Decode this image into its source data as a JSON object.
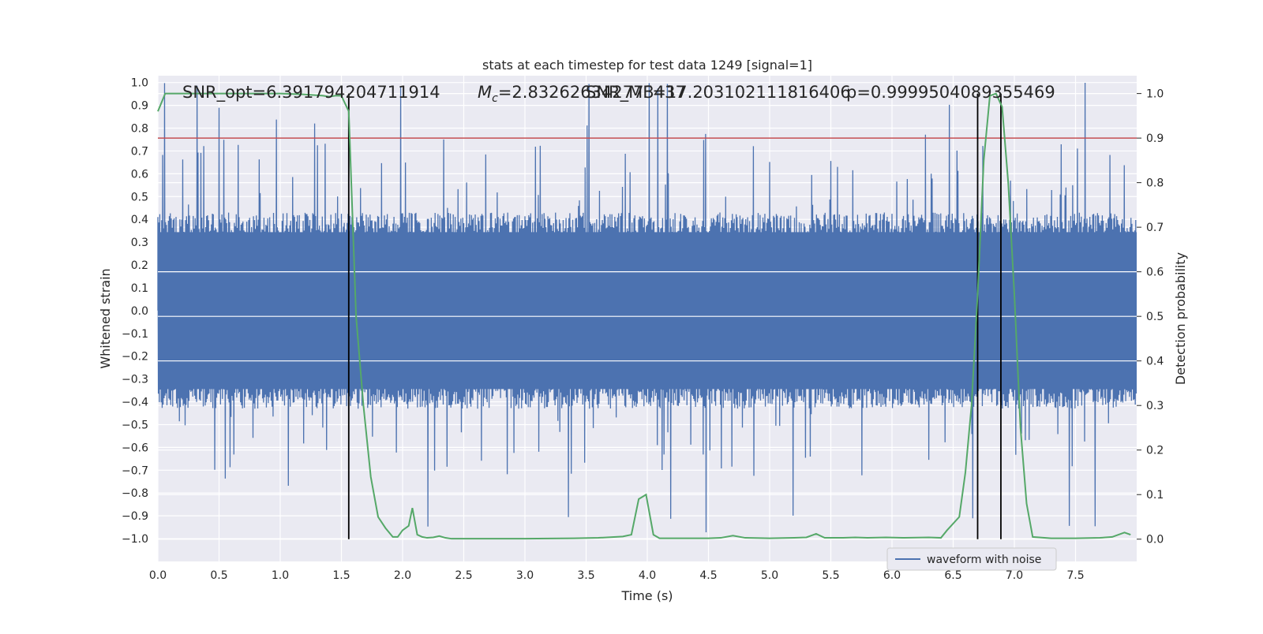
{
  "chart_data": {
    "type": "line",
    "title": "stats at each timestep for test data 1249 [signal=1]",
    "xlabel": "Time (s)",
    "ylabel_left": "Whitened strain",
    "ylabel_right": "Detection probability",
    "xlim": [
      0.0,
      8.0
    ],
    "ylim_left": [
      -1.1,
      1.03
    ],
    "ylim_right": [
      -0.05,
      1.04
    ],
    "x_ticks": [
      "0.0",
      "0.5",
      "1.0",
      "1.5",
      "2.0",
      "2.5",
      "3.0",
      "3.5",
      "4.0",
      "4.5",
      "5.0",
      "5.5",
      "6.0",
      "6.5",
      "7.0",
      "7.5"
    ],
    "y_ticks_left": [
      "1.0",
      "0.9",
      "0.8",
      "0.7",
      "0.6",
      "0.5",
      "0.4",
      "0.3",
      "0.2",
      "0.1",
      "0.0",
      "−0.1",
      "−0.2",
      "−0.3",
      "−0.4",
      "−0.5",
      "−0.6",
      "−0.7",
      "−0.8",
      "−0.9",
      "−1.0"
    ],
    "y_ticks_right": [
      "1.0",
      "0.9",
      "0.8",
      "0.7",
      "0.6",
      "0.5",
      "0.4",
      "0.3",
      "0.2",
      "0.1",
      "0.0"
    ],
    "grid": true,
    "legend_position": "lower-right",
    "annotations": {
      "snr": "SNR_opt=6.391794204711914",
      "mc_prefix": "M",
      "mc_sub": "c",
      "mc_value": "=2.832626342773437",
      "snr2": "SNR_MF=17.203102111816406",
      "p": "p=0.9999504089355469"
    },
    "threshold": {
      "y_right": 0.9
    },
    "event_markers_x": [
      1.56,
      6.7,
      6.89
    ],
    "series": [
      {
        "name": "waveform with noise",
        "axis": "left",
        "style": "dense-noise",
        "envelope_core": 0.43,
        "max_abs": 1.0,
        "samples": 2048
      },
      {
        "axis": "right",
        "style": "line",
        "points": [
          [
            0.0,
            0.96
          ],
          [
            0.06,
            1.0
          ],
          [
            0.2,
            1.0
          ],
          [
            0.4,
            1.0
          ],
          [
            0.6,
            1.0
          ],
          [
            0.8,
            1.0
          ],
          [
            1.0,
            1.0
          ],
          [
            1.2,
            0.998
          ],
          [
            1.35,
            0.995
          ],
          [
            1.4,
            0.993
          ],
          [
            1.45,
            0.995
          ],
          [
            1.5,
            0.995
          ],
          [
            1.56,
            0.96
          ],
          [
            1.62,
            0.5
          ],
          [
            1.68,
            0.3
          ],
          [
            1.74,
            0.14
          ],
          [
            1.8,
            0.05
          ],
          [
            1.86,
            0.025
          ],
          [
            1.92,
            0.005
          ],
          [
            1.96,
            0.005
          ],
          [
            2.0,
            0.02
          ],
          [
            2.05,
            0.03
          ],
          [
            2.08,
            0.07
          ],
          [
            2.12,
            0.01
          ],
          [
            2.16,
            0.005
          ],
          [
            2.2,
            0.003
          ],
          [
            2.25,
            0.004
          ],
          [
            2.3,
            0.007
          ],
          [
            2.35,
            0.003
          ],
          [
            2.4,
            0.001
          ],
          [
            2.6,
            0.001
          ],
          [
            3.0,
            0.001
          ],
          [
            3.4,
            0.002
          ],
          [
            3.6,
            0.003
          ],
          [
            3.8,
            0.006
          ],
          [
            3.87,
            0.01
          ],
          [
            3.93,
            0.09
          ],
          [
            3.99,
            0.1
          ],
          [
            4.05,
            0.01
          ],
          [
            4.1,
            0.002
          ],
          [
            4.3,
            0.002
          ],
          [
            4.5,
            0.002
          ],
          [
            4.6,
            0.003
          ],
          [
            4.7,
            0.008
          ],
          [
            4.8,
            0.003
          ],
          [
            5.0,
            0.002
          ],
          [
            5.2,
            0.003
          ],
          [
            5.3,
            0.004
          ],
          [
            5.38,
            0.012
          ],
          [
            5.45,
            0.003
          ],
          [
            5.6,
            0.003
          ],
          [
            5.7,
            0.004
          ],
          [
            5.8,
            0.003
          ],
          [
            5.95,
            0.004
          ],
          [
            6.1,
            0.003
          ],
          [
            6.3,
            0.004
          ],
          [
            6.4,
            0.003
          ],
          [
            6.45,
            0.02
          ],
          [
            6.55,
            0.05
          ],
          [
            6.6,
            0.15
          ],
          [
            6.65,
            0.3
          ],
          [
            6.7,
            0.55
          ],
          [
            6.75,
            0.85
          ],
          [
            6.8,
            0.995
          ],
          [
            6.85,
            1.0
          ],
          [
            6.9,
            0.97
          ],
          [
            6.95,
            0.8
          ],
          [
            7.0,
            0.55
          ],
          [
            7.05,
            0.25
          ],
          [
            7.1,
            0.08
          ],
          [
            7.15,
            0.005
          ],
          [
            7.3,
            0.002
          ],
          [
            7.5,
            0.002
          ],
          [
            7.7,
            0.003
          ],
          [
            7.8,
            0.005
          ],
          [
            7.9,
            0.015
          ],
          [
            7.95,
            0.01
          ]
        ]
      }
    ]
  }
}
